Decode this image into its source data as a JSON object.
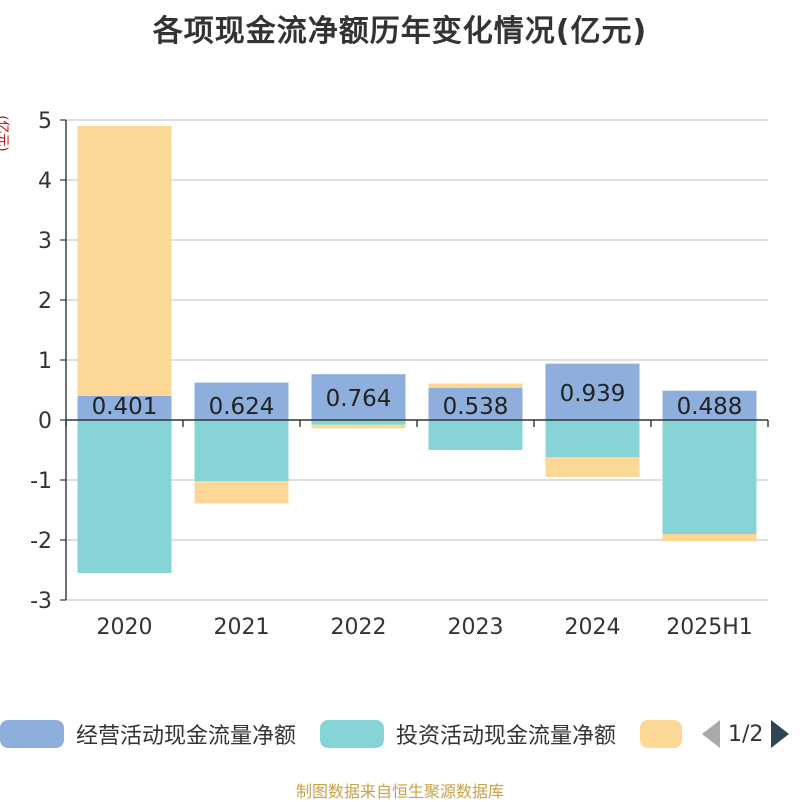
{
  "title": "各项现金流净额历年变化情况(亿元)",
  "y_unit": "(亿元)",
  "source": "制图数据来自恒生聚源数据库",
  "legend": {
    "items": [
      {
        "label": "经营活动现金流量净额",
        "color": "#8eaedc"
      },
      {
        "label": "投资活动现金流量净额",
        "color": "#86d4d6"
      },
      {
        "label": "",
        "color": "#fdd795"
      }
    ],
    "page": "1/2"
  },
  "chart_data": {
    "type": "bar",
    "stacked": true,
    "categories": [
      "2020",
      "2021",
      "2022",
      "2023",
      "2024",
      "2025H1"
    ],
    "series": [
      {
        "name": "经营活动现金流量净额",
        "color": "#8eaedc",
        "values": [
          0.401,
          0.624,
          0.764,
          0.538,
          0.939,
          0.488
        ],
        "labels": [
          "0.401",
          "0.624",
          "0.764",
          "0.538",
          "0.939",
          "0.488"
        ]
      },
      {
        "name": "投资活动现金流量净额",
        "color": "#86d4d6",
        "values": [
          -2.55,
          -1.02,
          -0.08,
          -0.5,
          -0.62,
          -1.9
        ]
      },
      {
        "name": "",
        "color": "#fdd795",
        "values": [
          4.5,
          -0.37,
          -0.06,
          0.07,
          -0.33,
          -0.12
        ]
      }
    ],
    "ylim": [
      -3,
      5
    ],
    "yticks": [
      "-3",
      "-2",
      "-1",
      "0",
      "1",
      "2",
      "3",
      "4",
      "5"
    ],
    "grid": true
  }
}
